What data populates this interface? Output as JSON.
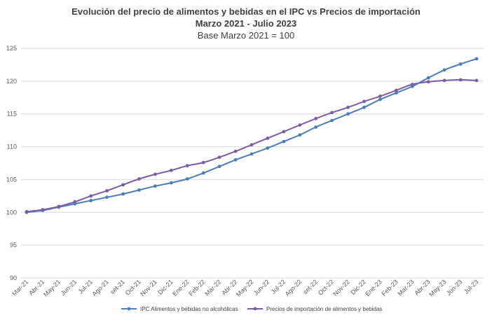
{
  "chart_data": {
    "type": "line",
    "title": "Evolución del precio de alimentos y bebidas en el IPC vs Precios de importación",
    "subtitle": "Marzo 2021 - Julio 2023",
    "note": "Base Marzo 2021 = 100",
    "ylim": [
      90,
      125
    ],
    "yticks": [
      90,
      95,
      100,
      105,
      110,
      115,
      120,
      125
    ],
    "grid": true,
    "legend_position": "bottom",
    "categories": [
      "Mar-21",
      "Abr-21",
      "May-21",
      "Jun-21",
      "Jul-21",
      "Ago-21",
      "set-21",
      "Oct-21",
      "Nov-21",
      "Dic-21",
      "Ene-22",
      "Feb-22",
      "Mar-22",
      "Abr-22",
      "May-22",
      "Jun-22",
      "Jul-22",
      "Ago-22",
      "set-22",
      "Oct-22",
      "Nov-22",
      "Dic-22",
      "Ene-23",
      "Feb-23",
      "Mar-23",
      "Abr-23",
      "May-23",
      "Jun-23",
      "Jul-23"
    ],
    "series": [
      {
        "name": "IPC Alimentos y bebidas no alcohólicas",
        "color": "#4a7ebb",
        "values": [
          100.0,
          100.3,
          100.8,
          101.3,
          101.8,
          102.3,
          102.8,
          103.4,
          104.0,
          104.5,
          105.1,
          106.0,
          107.0,
          108.0,
          108.9,
          109.8,
          110.8,
          111.8,
          113.0,
          114.0,
          115.0,
          116.0,
          117.2,
          118.2,
          119.2,
          120.5,
          121.7,
          122.6,
          123.4
        ]
      },
      {
        "name": "Precios de importación de alimentos y bebidas",
        "color": "#7e5ba6",
        "values": [
          100.1,
          100.4,
          100.9,
          101.6,
          102.5,
          103.3,
          104.2,
          105.1,
          105.8,
          106.4,
          107.1,
          107.6,
          108.4,
          109.3,
          110.3,
          111.3,
          112.3,
          113.3,
          114.3,
          115.2,
          116.0,
          116.9,
          117.7,
          118.6,
          119.5,
          119.9,
          120.1,
          120.2,
          120.1
        ]
      }
    ]
  }
}
